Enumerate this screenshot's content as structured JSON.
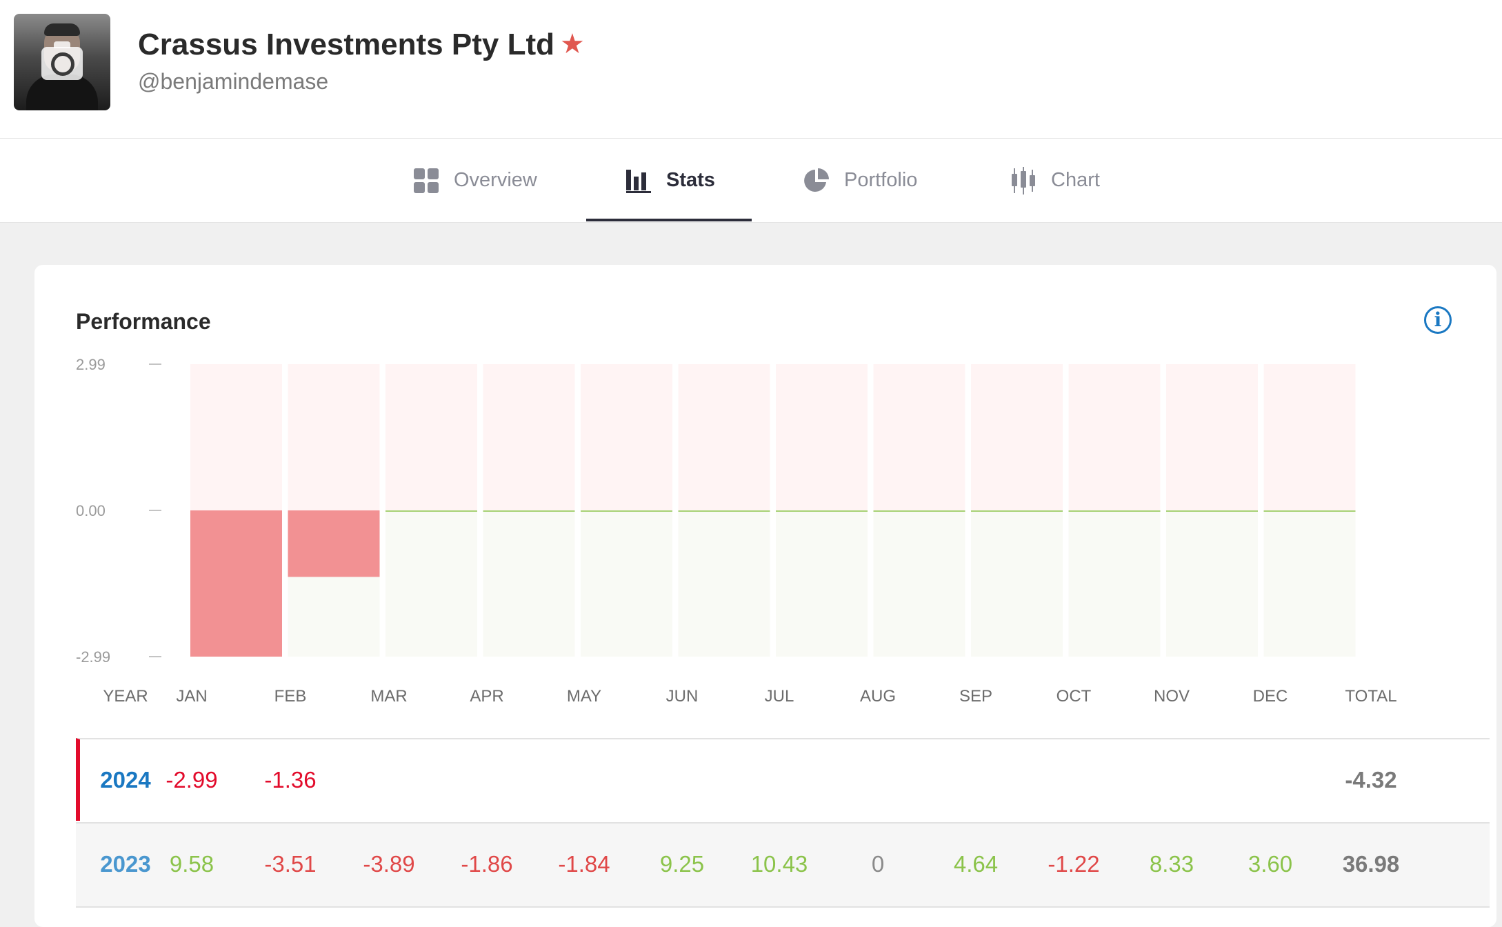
{
  "profile": {
    "name": "Crassus Investments Pty Ltd",
    "handle": "@benjamindemase",
    "favorite_icon": "star-icon",
    "star_color": "#e0574f"
  },
  "tabs": [
    {
      "label": "Overview",
      "icon": "grid-icon",
      "active": false
    },
    {
      "label": "Stats",
      "icon": "bar-chart-icon",
      "active": true
    },
    {
      "label": "Portfolio",
      "icon": "pie-chart-icon",
      "active": false
    },
    {
      "label": "Chart",
      "icon": "candlestick-icon",
      "active": false
    }
  ],
  "performance": {
    "title": "Performance",
    "info_icon": "info-icon",
    "columns": [
      "YEAR",
      "JAN",
      "FEB",
      "MAR",
      "APR",
      "MAY",
      "JUN",
      "JUL",
      "AUG",
      "SEP",
      "OCT",
      "NOV",
      "DEC",
      "TOTAL"
    ],
    "rows": [
      {
        "year": "2024",
        "values": [
          "-2.99",
          "-1.36",
          "",
          "",
          "",
          "",
          "",
          "",
          "",
          "",
          "",
          ""
        ],
        "total": "-4.32"
      },
      {
        "year": "2023",
        "values": [
          "9.58",
          "-3.51",
          "-3.89",
          "-1.86",
          "-1.84",
          "9.25",
          "10.43",
          "0",
          "4.64",
          "-1.22",
          "8.33",
          "3.60"
        ],
        "total": "36.98"
      }
    ]
  },
  "chart_data": {
    "type": "bar",
    "categories": [
      "JAN",
      "FEB",
      "MAR",
      "APR",
      "MAY",
      "JUN",
      "JUL",
      "AUG",
      "SEP",
      "OCT",
      "NOV",
      "DEC"
    ],
    "values": [
      -2.99,
      -1.36,
      0,
      0,
      0,
      0,
      0,
      0,
      0,
      0,
      0,
      0
    ],
    "ytick_labels": [
      "2.99",
      "0.00",
      "-2.99"
    ],
    "yticks": [
      2.99,
      0,
      -2.99
    ],
    "ylim": [
      -2.99,
      2.99
    ],
    "colors": {
      "negative_bar": "#f29193",
      "negative_bg": "#fff4f4",
      "positive_bg": "#f9faf5",
      "zero_line": "#8bc34a"
    }
  }
}
